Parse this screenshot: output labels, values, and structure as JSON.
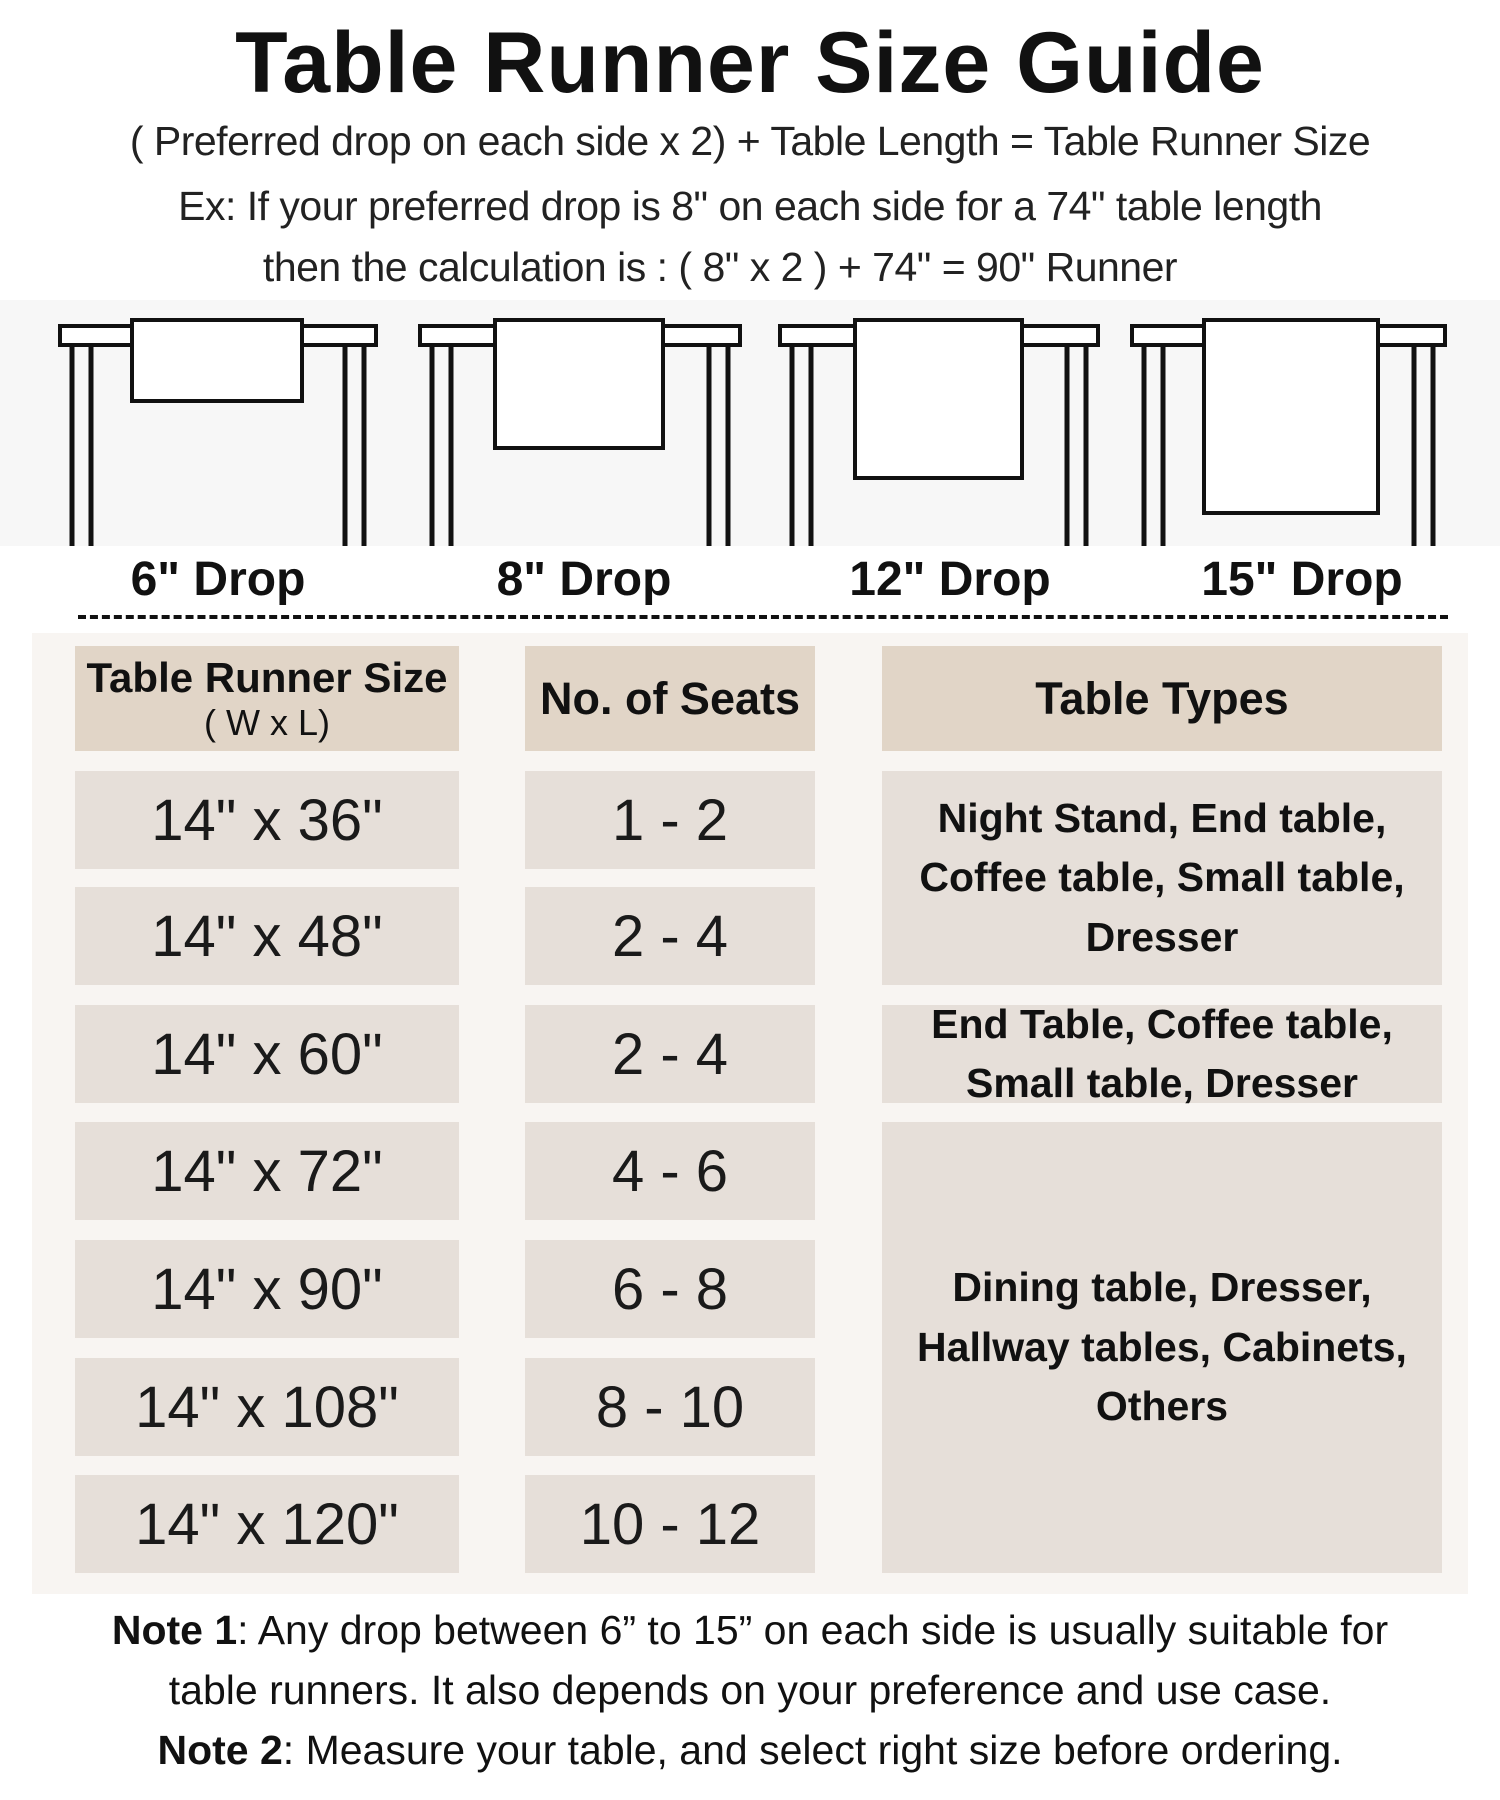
{
  "title": "Table Runner Size Guide",
  "subtitle_lines": [
    "( Preferred drop on each side x 2) + Table Length = Table Runner Size",
    "Ex: If your preferred drop is 8\" on each side for a 74\" table length",
    "then the calculation is : ( 8\" x 2 ) + 74\" = 90\" Runner"
  ],
  "drops": [
    "6\" Drop",
    "8\" Drop",
    "12\" Drop",
    "15\" Drop"
  ],
  "table": {
    "headers": {
      "size": "Table Runner Size",
      "size_sub": "( W x L)",
      "seats": "No. of Seats",
      "types": "Table Types"
    },
    "rows": [
      {
        "size": "14\" x 36\"",
        "seats": "1 - 2"
      },
      {
        "size": "14\" x 48\"",
        "seats": "2 - 4"
      },
      {
        "size": "14\" x 60\"",
        "seats": "2 - 4"
      },
      {
        "size": "14\" x 72\"",
        "seats": "4 - 6"
      },
      {
        "size": "14\" x 90\"",
        "seats": "6 - 8"
      },
      {
        "size": "14\" x 108\"",
        "seats": "8 - 10"
      },
      {
        "size": "14\" x 120\"",
        "seats": "10 - 12"
      }
    ],
    "type_groups": [
      {
        "text": "Night Stand, End table, Coffee table, Small table, Dresser",
        "rows": [
          0,
          1
        ]
      },
      {
        "text": "End Table, Coffee table, Small table, Dresser",
        "rows": [
          2,
          2
        ]
      },
      {
        "text": "Dining table, Dresser, Hallway tables, Cabinets, Others",
        "rows": [
          3,
          6
        ]
      }
    ]
  },
  "notes": {
    "note1_label": "Note 1",
    "note1_line1": ": Any drop between 6” to 15” on each side is usually suitable for",
    "note1_line2": "table runners. It also depends on your preference and use case.",
    "note2_label": "Note 2",
    "note2_text": ": Measure your table, and select right size before ordering."
  },
  "colors": {
    "header_bg": "#e1d5c7",
    "cell_bg": "#e6dfd9",
    "panel_bg": "#f8f5f2"
  }
}
